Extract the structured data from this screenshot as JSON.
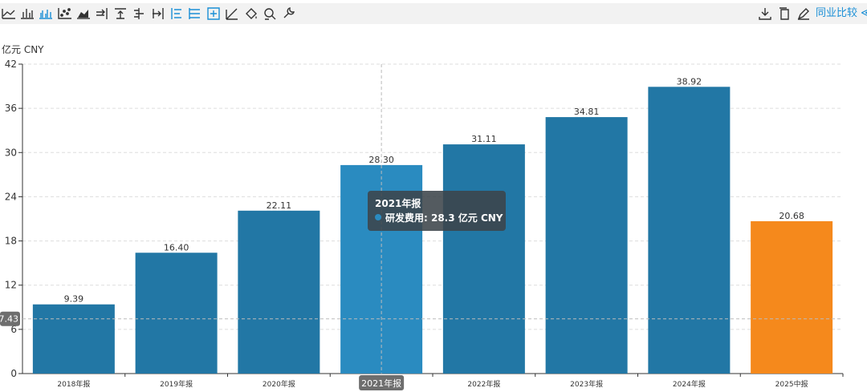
{
  "toolbar": {
    "left_icons": [
      "line-chart-icon",
      "bar-chart-icon",
      "grouped-bar-icon",
      "scatter-icon",
      "area-chart-icon",
      "align-right-icon",
      "align-top-icon",
      "align-center-icon",
      "align-bottom-icon",
      "list-left-icon",
      "list-indent-icon",
      "grid-add-icon",
      "trend-icon",
      "fill-icon",
      "zoom-icon",
      "settings-wrench-icon"
    ],
    "right_icons": [
      "download-icon",
      "copy-icon",
      "edit-icon"
    ],
    "peer_compare_label": "同业比较 ≪"
  },
  "colors": {
    "bar": "#2277a5",
    "bar_hover": "#2a8bc0",
    "bar_forecast": "#f5891c",
    "accent": "#1a8fd6"
  },
  "chart_data": {
    "type": "bar",
    "unit_label": "亿元  CNY",
    "categories": [
      "2018年报",
      "2019年报",
      "2020年报",
      "2021年报",
      "2022年报",
      "2023年报",
      "2024年报",
      "2025中报"
    ],
    "values": [
      9.39,
      16.4,
      22.11,
      28.3,
      31.11,
      34.81,
      38.92,
      20.68
    ],
    "value_labels": [
      "9.39",
      "16.40",
      "22.11",
      "28.30",
      "31.11",
      "34.81",
      "38.92",
      "20.68"
    ],
    "y_ticks": [
      "0",
      "6",
      "12",
      "18",
      "24",
      "30",
      "36",
      "42"
    ],
    "ylim": [
      0,
      42
    ],
    "grid": true,
    "highlighted_index": 3,
    "cursor_y_label": "7.43",
    "cursor_x_label": "2021年报"
  },
  "tooltip": {
    "title": "2021年报",
    "series_line": "研发费用: 28.3  亿元  CNY"
  }
}
